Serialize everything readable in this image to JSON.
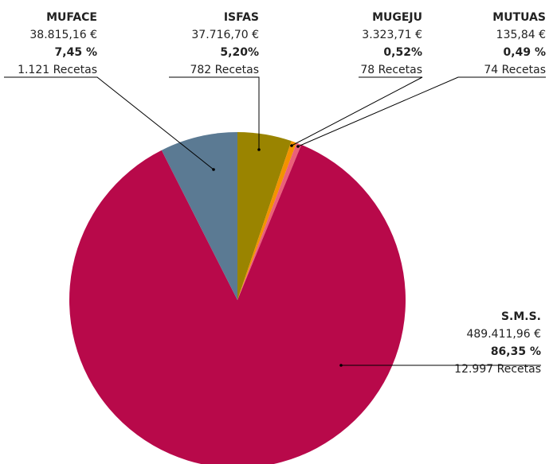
{
  "chart_data": {
    "type": "pie",
    "categories": [
      "ISFAS",
      "MUGEJU",
      "MUTUAS",
      "S.M.S.",
      "MUFACE"
    ],
    "values": [
      5.2,
      0.52,
      0.49,
      86.35,
      7.45
    ],
    "value_labels": [
      "5,20%",
      "0,52%",
      "0,49 %",
      "86,35 %",
      "7,45 %"
    ],
    "amounts": [
      "37.716,70 €",
      "3.323,71 €",
      "135,84 €",
      "489.411,96 €",
      "38.815,16 €"
    ],
    "prescriptions": [
      "782 Recetas",
      "78 Recetas",
      "74 Recetas",
      "12.997 Recetas",
      "1.121 Recetas"
    ],
    "colors": [
      "#9a8400",
      "#f39200",
      "#ea6079",
      "#b8094a",
      "#5b7a93"
    ]
  }
}
